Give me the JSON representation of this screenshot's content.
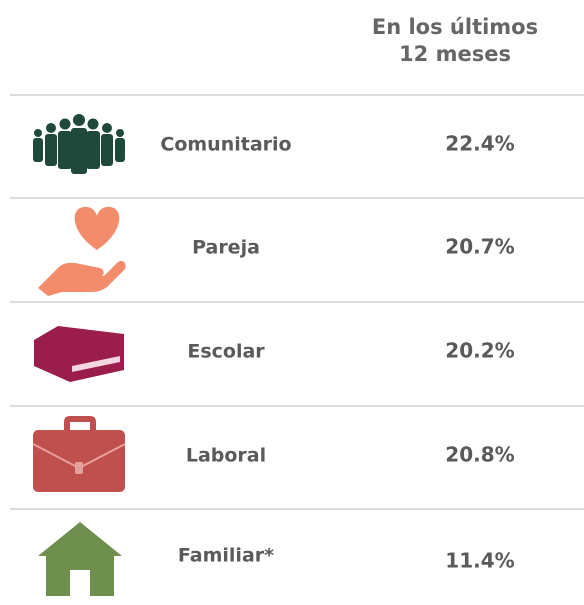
{
  "table": {
    "header": [
      "En los últimos",
      "12 meses"
    ],
    "rows": [
      [
        "Comunitario",
        "22.4%"
      ],
      [
        "Pareja",
        "20.7%"
      ],
      [
        "Escolar",
        "20.2%"
      ],
      [
        "Laboral",
        "20.8%"
      ],
      [
        "Familiar*",
        "11.4%"
      ]
    ]
  }
}
